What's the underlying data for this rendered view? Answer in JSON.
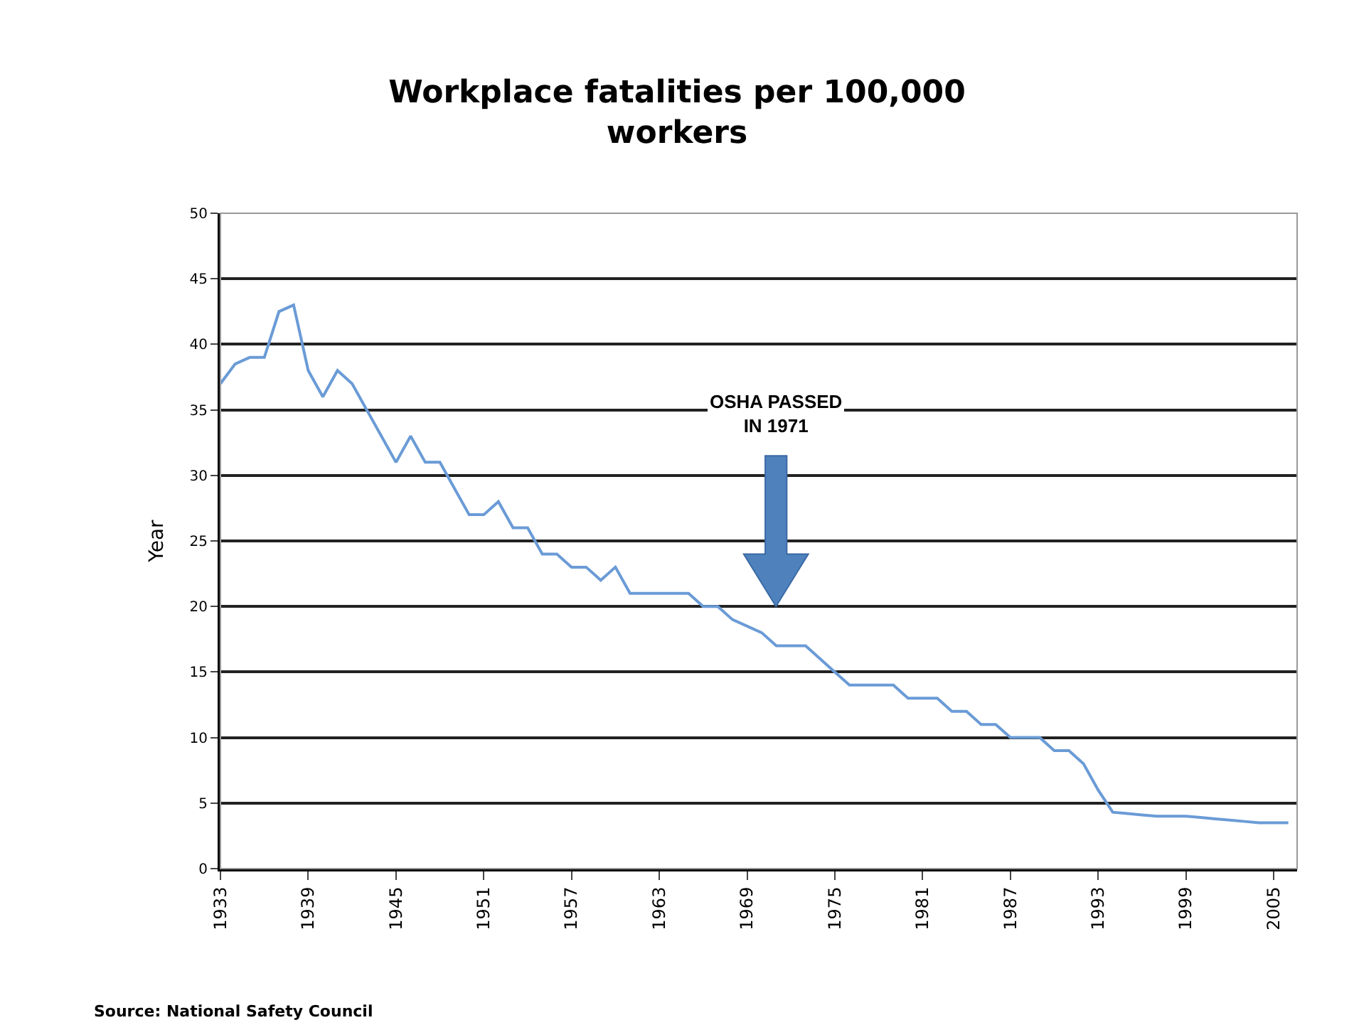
{
  "chart_data": {
    "type": "line",
    "title": "Workplace fatalities per 100,000\nworkers",
    "ylabel": "Year",
    "x": [
      1933,
      1934,
      1935,
      1936,
      1937,
      1938,
      1939,
      1940,
      1941,
      1942,
      1943,
      1944,
      1945,
      1946,
      1947,
      1948,
      1949,
      1950,
      1951,
      1952,
      1953,
      1954,
      1955,
      1956,
      1957,
      1958,
      1959,
      1960,
      1961,
      1962,
      1963,
      1964,
      1965,
      1966,
      1967,
      1968,
      1969,
      1970,
      1971,
      1972,
      1973,
      1974,
      1975,
      1976,
      1977,
      1978,
      1979,
      1980,
      1981,
      1982,
      1983,
      1984,
      1985,
      1986,
      1987,
      1988,
      1989,
      1990,
      1991,
      1992,
      1993,
      1994,
      1995,
      1996,
      1997,
      1998,
      1999,
      2000,
      2001,
      2002,
      2003,
      2004,
      2005,
      2006
    ],
    "series": [
      {
        "color": "#6a9bd6",
        "values": [
          37,
          38.5,
          39,
          39,
          42.5,
          43,
          38,
          36,
          38,
          37,
          35,
          33,
          31,
          33,
          31,
          31,
          29,
          27,
          27,
          28,
          26,
          26,
          24,
          24,
          23,
          23,
          22,
          23,
          21,
          21,
          21,
          21,
          21,
          20,
          20,
          19,
          18.5,
          18,
          17,
          17,
          17,
          16,
          15,
          14,
          14,
          14,
          14,
          13,
          13,
          13,
          12,
          12,
          11,
          11,
          10,
          10,
          10,
          9,
          9,
          8,
          6,
          4.3,
          4.2,
          4.1,
          4,
          4,
          4,
          3.9,
          3.8,
          3.7,
          3.6,
          3.5,
          3.5,
          3.5
        ]
      }
    ],
    "xlim": [
      1933,
      2006.6
    ],
    "xticks": [
      1933,
      1939,
      1945,
      1951,
      1957,
      1963,
      1969,
      1975,
      1981,
      1987,
      1993,
      1999,
      2005
    ],
    "ylim": [
      0,
      50
    ],
    "yticks": [
      0,
      5,
      10,
      15,
      20,
      25,
      30,
      35,
      40,
      45,
      50
    ],
    "grid": "y",
    "marker": "none",
    "line_style": "solid",
    "annotations": [
      "OSHA PASSED\nIN 1971",
      "Source: National Safety Council"
    ]
  }
}
